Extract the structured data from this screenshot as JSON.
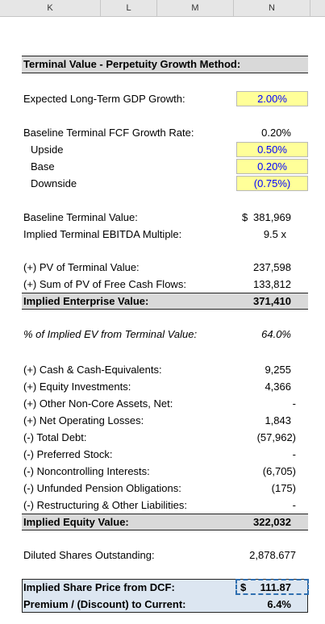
{
  "columns": [
    "K",
    "L",
    "M",
    "N"
  ],
  "section_title": "Terminal Value - Perpetuity Growth Method:",
  "gdp": {
    "label": "Expected Long-Term GDP Growth:",
    "value": "2.00%"
  },
  "baseline_fcf": {
    "label": "Baseline Terminal FCF Growth Rate:",
    "value": "0.20%"
  },
  "cases": [
    {
      "label": "Upside",
      "value": "0.50%"
    },
    {
      "label": "Base",
      "value": "0.20%"
    },
    {
      "label": "Downside",
      "value": "(0.75%)"
    }
  ],
  "baseline_tv": {
    "label": "Baseline Terminal Value:",
    "currency": "$",
    "value": "381,969"
  },
  "ebitda_multiple": {
    "label": "Implied Terminal EBITDA Multiple:",
    "value": "9.5 x"
  },
  "pv_tv": {
    "label": "(+) PV of Terminal Value:",
    "value": "237,598"
  },
  "pv_fcf": {
    "label": "(+) Sum of PV of Free Cash Flows:",
    "value": "133,812"
  },
  "implied_ev": {
    "label": "Implied Enterprise Value:",
    "value": "371,410"
  },
  "pct_tv": {
    "label": "% of Implied EV from Terminal Value:",
    "value": "64.0%"
  },
  "bridge": [
    {
      "label": "(+) Cash & Cash-Equivalents:",
      "value": "9,255"
    },
    {
      "label": "(+) Equity Investments:",
      "value": "4,366"
    },
    {
      "label": "(+) Other Non-Core Assets, Net:",
      "value": "-"
    },
    {
      "label": "(+) Net Operating Losses:",
      "value": "1,843"
    },
    {
      "label": "(-) Total Debt:",
      "value": "(57,962)"
    },
    {
      "label": "(-) Preferred Stock:",
      "value": "-"
    },
    {
      "label": "(-) Noncontrolling Interests:",
      "value": "(6,705)"
    },
    {
      "label": "(-) Unfunded Pension Obligations:",
      "value": "(175)"
    },
    {
      "label": "(-) Restructuring & Other Liabilities:",
      "value": "-"
    }
  ],
  "implied_equity": {
    "label": "Implied Equity Value:",
    "value": "322,032"
  },
  "diluted_shares": {
    "label": "Diluted Shares Outstanding:",
    "value": "2,878.677"
  },
  "share_price": {
    "label": "Implied Share Price from DCF:",
    "currency": "$",
    "value": "111.87"
  },
  "premium": {
    "label": "Premium / (Discount) to Current:",
    "value": "6.4%"
  }
}
